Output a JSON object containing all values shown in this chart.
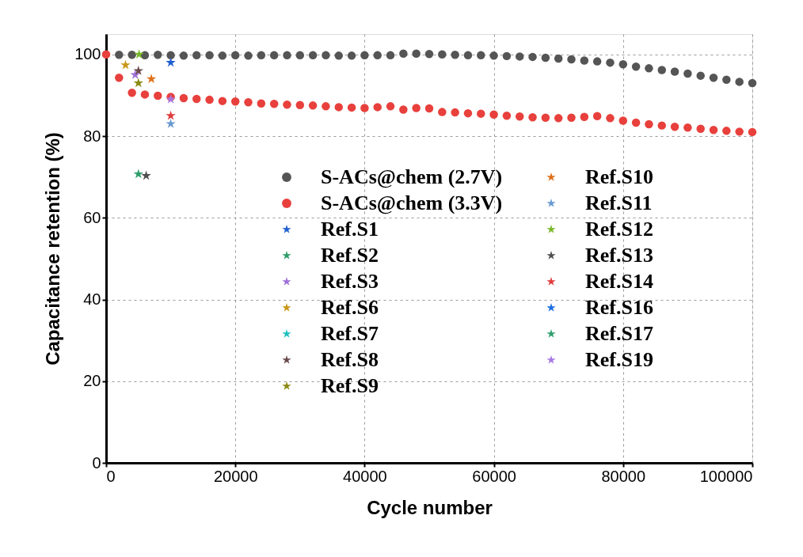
{
  "chart_data": {
    "type": "scatter",
    "xlabel": "Cycle number",
    "ylabel": "Capacitance retention (%)",
    "xlim": [
      0,
      100000
    ],
    "xticks": [
      0,
      {
        "value": 20000,
        "label": "20000"
      },
      {
        "value": 40000,
        "label": "40000"
      },
      {
        "value": 60000,
        "label": "60000"
      },
      {
        "value": 80000,
        "label": "80000"
      },
      {
        "value": 100000,
        "label": "100000"
      }
    ],
    "ylim": [
      0,
      105
    ],
    "yticks": [
      0,
      20,
      40,
      60,
      80,
      100
    ],
    "grid": true,
    "legend": "center",
    "x": [
      0,
      2000,
      4000,
      6000,
      8000,
      10000,
      12000,
      14000,
      16000,
      18000,
      20000,
      22000,
      24000,
      26000,
      28000,
      30000,
      32000,
      34000,
      36000,
      38000,
      40000,
      42000,
      44000,
      46000,
      48000,
      50000,
      52000,
      54000,
      56000,
      58000,
      60000,
      62000,
      64000,
      66000,
      68000,
      70000,
      72000,
      74000,
      76000,
      78000,
      80000,
      82000,
      84000,
      86000,
      88000,
      90000,
      92000,
      94000,
      96000,
      98000,
      100000
    ],
    "series": [
      {
        "name": "S-ACs@chem (2.7V)",
        "color": "#555555",
        "marker": "circle",
        "values": [
          null,
          99.9,
          99.9,
          99.8,
          99.9,
          99.8,
          99.7,
          99.8,
          99.8,
          99.7,
          99.8,
          99.7,
          99.8,
          99.8,
          99.8,
          99.8,
          99.8,
          99.8,
          99.7,
          99.7,
          99.8,
          99.8,
          99.8,
          100.2,
          100.2,
          100.1,
          100,
          99.9,
          99.8,
          99.8,
          99.7,
          99.6,
          99.5,
          99.4,
          99.2,
          99,
          98.8,
          98.5,
          98.3,
          98,
          97.6,
          97,
          96.6,
          96.2,
          95.8,
          95.3,
          94.8,
          94.3,
          93.8,
          93.3,
          93
        ]
      },
      {
        "name": "S-ACs@chem (3.3V)",
        "color": "#e8403c",
        "marker": "circle",
        "values": [
          100,
          94.3,
          90.6,
          90.2,
          89.9,
          89.6,
          89.3,
          89.1,
          88.9,
          88.6,
          88.5,
          88.3,
          88,
          87.9,
          87.7,
          87.6,
          87.5,
          87.3,
          87.1,
          87,
          86.9,
          87.1,
          87.3,
          86.5,
          86.9,
          86.8,
          85.9,
          85.8,
          85.6,
          85.5,
          85.3,
          85,
          84.8,
          84.6,
          84.5,
          84.4,
          84.5,
          84.7,
          84.9,
          84.4,
          83.8,
          83.3,
          82.9,
          82.6,
          82.3,
          82.1,
          81.8,
          81.5,
          81.3,
          81.1,
          81
        ]
      },
      {
        "name": "Ref.S1",
        "color": "#1f5fd0",
        "marker": "star",
        "x": [
          10000
        ],
        "values": [
          98
        ]
      },
      {
        "name": "Ref.S2",
        "color": "#2e9e6a",
        "marker": "star",
        "x": [
          5000
        ],
        "values": [
          70.7
        ]
      },
      {
        "name": "Ref.S3",
        "color": "#a070d8",
        "marker": "star",
        "x": [
          4500
        ],
        "values": [
          95
        ]
      },
      {
        "name": "Ref.S6",
        "color": "#c8961a",
        "marker": "star",
        "x": [
          3000
        ],
        "values": [
          97.4
        ]
      },
      {
        "name": "Ref.S7",
        "color": "#20c0c0",
        "marker": "star",
        "x": [
          null
        ],
        "values": [
          null
        ]
      },
      {
        "name": "Ref.S8",
        "color": "#6b4a4a",
        "marker": "star",
        "x": [
          5000
        ],
        "values": [
          96
        ]
      },
      {
        "name": "Ref.S9",
        "color": "#8a8a10",
        "marker": "star",
        "x": [
          5000
        ],
        "values": [
          93
        ]
      },
      {
        "name": "Ref.S10",
        "color": "#e0701a",
        "marker": "star",
        "x": [
          7000
        ],
        "values": [
          94
        ]
      },
      {
        "name": "Ref.S11",
        "color": "#6a9ad0",
        "marker": "star",
        "x": [
          10000
        ],
        "values": [
          83
        ]
      },
      {
        "name": "Ref.S12",
        "color": "#7ab82a",
        "marker": "star",
        "x": [
          5100
        ],
        "values": [
          100
        ]
      },
      {
        "name": "Ref.S13",
        "color": "#505050",
        "marker": "star",
        "x": [
          6200
        ],
        "values": [
          70.3
        ]
      },
      {
        "name": "Ref.S14",
        "color": "#e03c3c",
        "marker": "star",
        "x": [
          10000
        ],
        "values": [
          85
        ]
      },
      {
        "name": "Ref.S16",
        "color": "#1a6ee0",
        "marker": "star",
        "x": [
          null
        ],
        "values": [
          null
        ]
      },
      {
        "name": "Ref.S17",
        "color": "#30a070",
        "marker": "star",
        "x": [
          null
        ],
        "values": [
          null
        ]
      },
      {
        "name": "Ref.S19",
        "color": "#a878e0",
        "marker": "star",
        "x": [
          10000
        ],
        "values": [
          89
        ]
      }
    ]
  }
}
